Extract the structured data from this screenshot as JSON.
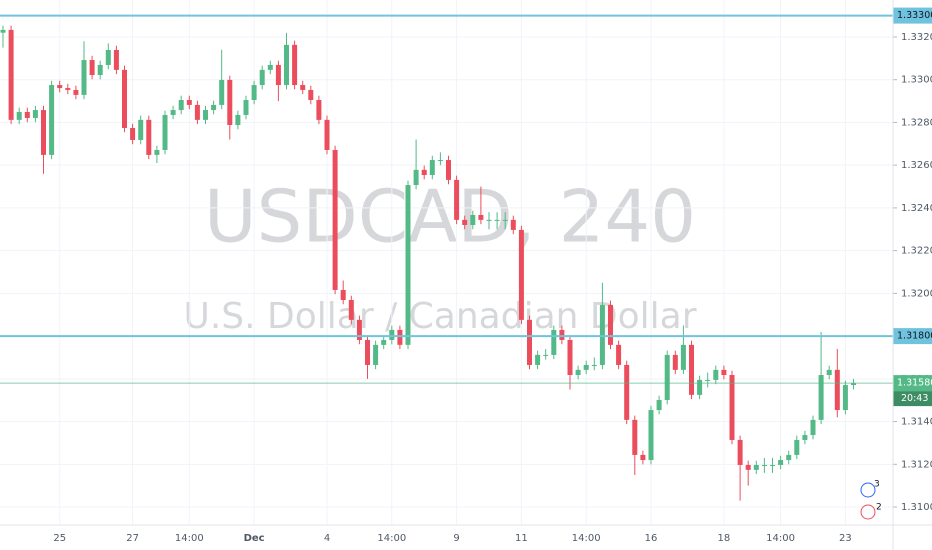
{
  "chart_data": {
    "type": "candlestick",
    "watermark_title": "USDCAD, 240",
    "watermark_subtitle": "U.S. Dollar / Canadian Dollar",
    "categories": [
      null,
      null,
      null,
      null,
      null,
      null,
      null,
      "25",
      null,
      null,
      null,
      null,
      null,
      null,
      null,
      null,
      "27",
      null,
      null,
      null,
      null,
      null,
      null,
      "14:00",
      null,
      null,
      null,
      null,
      null,
      null,
      null,
      "Dec",
      null,
      null,
      null,
      null,
      null,
      null,
      null,
      null,
      "4",
      null,
      null,
      null,
      null,
      null,
      null,
      null,
      "14:00",
      null,
      null,
      null,
      null,
      null,
      null,
      null,
      "9",
      null,
      null,
      null,
      null,
      null,
      null,
      null,
      "11",
      null,
      null,
      null,
      null,
      null,
      null,
      null,
      "14:00",
      null,
      null,
      null,
      null,
      null,
      null,
      null,
      "16",
      null,
      null,
      null,
      null,
      null,
      null,
      null,
      null,
      "18",
      null,
      null,
      null,
      null,
      null,
      null,
      "14:00",
      null,
      null,
      null,
      null,
      null,
      null,
      null,
      "23",
      null
    ],
    "open": [
      1.3322,
      1.33233,
      1.32812,
      1.32849,
      1.32821,
      1.32858,
      1.32648,
      1.32975,
      1.32961,
      1.32952,
      1.32929,
      1.33092,
      1.33022,
      1.33069,
      1.33139,
      1.33046,
      1.32774,
      1.32718,
      1.32812,
      1.32648,
      1.32671,
      1.32835,
      1.32858,
      1.32905,
      1.32882,
      1.32812,
      1.32858,
      1.32882,
      1.32999,
      1.32788,
      1.32835,
      1.32905,
      1.32975,
      1.33046,
      1.33069,
      1.32975,
      1.33163,
      1.32975,
      1.32952,
      1.32905,
      1.32812,
      1.32671,
      1.32016,
      1.31969,
      1.31876,
      1.31782,
      1.31665,
      1.31759,
      1.31782,
      1.31829,
      1.31759,
      1.32507,
      1.32578,
      1.32554,
      1.32624,
      1.32624,
      1.32531,
      1.32344,
      1.3232,
      1.32367,
      1.32344,
      1.32344,
      1.32344,
      1.32344,
      1.32297,
      1.31876,
      1.31665,
      1.31712,
      1.31712,
      1.31829,
      1.31782,
      1.31618,
      1.31642,
      1.31665,
      1.31665,
      1.31946,
      1.31759,
      1.31665,
      1.31408,
      1.31244,
      1.3122,
      1.31454,
      1.31501,
      1.31712,
      1.31642,
      1.31759,
      1.31525,
      1.31595,
      1.31595,
      1.31642,
      1.31618,
      1.31314,
      1.31197,
      1.31174,
      1.31197,
      1.31197,
      1.31197,
      1.3122,
      1.31244,
      1.31314,
      1.31337,
      1.31408,
      1.31618,
      1.31642,
      1.31454,
      1.31571
    ],
    "high": [
      1.33253,
      1.33253,
      1.32869,
      1.32869,
      1.32878,
      1.32878,
      1.32995,
      1.32995,
      1.32981,
      1.32972,
      1.3318,
      1.33112,
      1.33089,
      1.3317,
      1.33159,
      1.33066,
      1.32794,
      1.32832,
      1.32832,
      1.32691,
      1.32855,
      1.32878,
      1.32925,
      1.32925,
      1.32902,
      1.32878,
      1.32902,
      1.3314,
      1.33019,
      1.32855,
      1.32925,
      1.32995,
      1.33066,
      1.33089,
      1.33089,
      1.3322,
      1.33183,
      1.32995,
      1.32972,
      1.32925,
      1.32832,
      1.32691,
      1.3206,
      1.31989,
      1.31896,
      1.31802,
      1.31779,
      1.31802,
      1.31849,
      1.31849,
      1.32527,
      1.3272,
      1.32598,
      1.32644,
      1.3266,
      1.32644,
      1.32551,
      1.32364,
      1.32387,
      1.325,
      1.3238,
      1.3238,
      1.3238,
      1.32364,
      1.32317,
      1.31896,
      1.31732,
      1.3174,
      1.31849,
      1.31849,
      1.31802,
      1.31662,
      1.31685,
      1.317,
      1.3205,
      1.31966,
      1.31779,
      1.31685,
      1.31428,
      1.31264,
      1.31474,
      1.31521,
      1.31732,
      1.31732,
      1.3185,
      1.31779,
      1.31615,
      1.3163,
      1.31662,
      1.31662,
      1.31638,
      1.31334,
      1.31217,
      1.31217,
      1.3123,
      1.3123,
      1.3124,
      1.31264,
      1.31334,
      1.31357,
      1.31428,
      1.3182,
      1.31662,
      1.3174,
      1.31591,
      1.316
    ],
    "low": [
      1.3315,
      1.32792,
      1.32792,
      1.32801,
      1.32801,
      1.3256,
      1.32628,
      1.32941,
      1.32932,
      1.32909,
      1.32909,
      1.33002,
      1.33002,
      1.33049,
      1.33026,
      1.32754,
      1.32698,
      1.32698,
      1.32628,
      1.3261,
      1.32651,
      1.32815,
      1.32838,
      1.32862,
      1.32792,
      1.32792,
      1.32838,
      1.32862,
      1.3272,
      1.32768,
      1.32815,
      1.32885,
      1.32955,
      1.33026,
      1.329,
      1.32955,
      1.32955,
      1.32932,
      1.32885,
      1.32792,
      1.32651,
      1.31996,
      1.31949,
      1.31856,
      1.31762,
      1.316,
      1.31645,
      1.31739,
      1.31762,
      1.31739,
      1.31739,
      1.32487,
      1.32534,
      1.32534,
      1.326,
      1.32511,
      1.32324,
      1.323,
      1.323,
      1.32324,
      1.323,
      1.323,
      1.323,
      1.32277,
      1.31856,
      1.31645,
      1.31645,
      1.3169,
      1.31692,
      1.31762,
      1.3155,
      1.31598,
      1.31622,
      1.3164,
      1.31645,
      1.31739,
      1.31645,
      1.31388,
      1.3115,
      1.312,
      1.312,
      1.31434,
      1.31481,
      1.31622,
      1.31622,
      1.31505,
      1.31505,
      1.3156,
      1.31575,
      1.31598,
      1.31294,
      1.3103,
      1.311,
      1.31154,
      1.3116,
      1.3116,
      1.31177,
      1.312,
      1.31224,
      1.31294,
      1.31317,
      1.31388,
      1.31598,
      1.3142,
      1.31434,
      1.31551
    ],
    "close": [
      1.33233,
      1.32812,
      1.32849,
      1.32821,
      1.32858,
      1.32648,
      1.32975,
      1.32961,
      1.32952,
      1.32929,
      1.33092,
      1.33022,
      1.33069,
      1.33139,
      1.33046,
      1.32774,
      1.32718,
      1.32812,
      1.32648,
      1.32671,
      1.32835,
      1.32858,
      1.32905,
      1.32882,
      1.32812,
      1.32858,
      1.32882,
      1.32999,
      1.32788,
      1.32835,
      1.32905,
      1.32975,
      1.33046,
      1.33069,
      1.32975,
      1.33163,
      1.32975,
      1.32952,
      1.32905,
      1.32812,
      1.32671,
      1.32016,
      1.31969,
      1.31876,
      1.31782,
      1.31665,
      1.31759,
      1.31782,
      1.31829,
      1.31759,
      1.32507,
      1.32578,
      1.32554,
      1.32624,
      1.32624,
      1.32531,
      1.32344,
      1.3232,
      1.32367,
      1.32344,
      1.32344,
      1.32344,
      1.32344,
      1.32297,
      1.31876,
      1.31665,
      1.31712,
      1.31712,
      1.31829,
      1.31782,
      1.31618,
      1.31642,
      1.31665,
      1.31665,
      1.31946,
      1.31759,
      1.31665,
      1.31408,
      1.31244,
      1.3122,
      1.31454,
      1.31501,
      1.31712,
      1.31642,
      1.31759,
      1.31525,
      1.31595,
      1.31595,
      1.31642,
      1.31618,
      1.31314,
      1.31197,
      1.31174,
      1.31197,
      1.31197,
      1.31197,
      1.3122,
      1.31244,
      1.31314,
      1.31337,
      1.31408,
      1.31618,
      1.31642,
      1.31454,
      1.31571,
      1.3158
    ],
    "up_color": "#53b987",
    "down_color": "#eb4d5c",
    "ylim": [
      1.30916,
      1.33373
    ],
    "yticks": [
      {
        "value": 1.31,
        "label": "1.31000"
      },
      {
        "value": 1.312,
        "label": "1.31200"
      },
      {
        "value": 1.314,
        "label": "1.31400"
      },
      {
        "value": 1.316,
        "label": "1.31600"
      },
      {
        "value": 1.318,
        "label": "1.31800"
      },
      {
        "value": 1.32,
        "label": "1.32000"
      },
      {
        "value": 1.322,
        "label": "1.32200"
      },
      {
        "value": 1.324,
        "label": "1.32400"
      },
      {
        "value": 1.326,
        "label": "1.32600"
      },
      {
        "value": 1.328,
        "label": "1.32800"
      },
      {
        "value": 1.33,
        "label": "1.33000"
      },
      {
        "value": 1.332,
        "label": "1.33200"
      }
    ],
    "grid": true,
    "hlines": [
      {
        "value": 1.333,
        "label": "1.33300",
        "color": "#6fc3df"
      },
      {
        "value": 1.318,
        "label": "1.31800",
        "color": "#6fc3df"
      }
    ],
    "last_price": {
      "value": 1.3158,
      "label": "1.31580",
      "countdown": "20:43",
      "color": "#53b987"
    },
    "events": [
      {
        "label": "3"
      },
      {
        "label": "2"
      }
    ]
  }
}
